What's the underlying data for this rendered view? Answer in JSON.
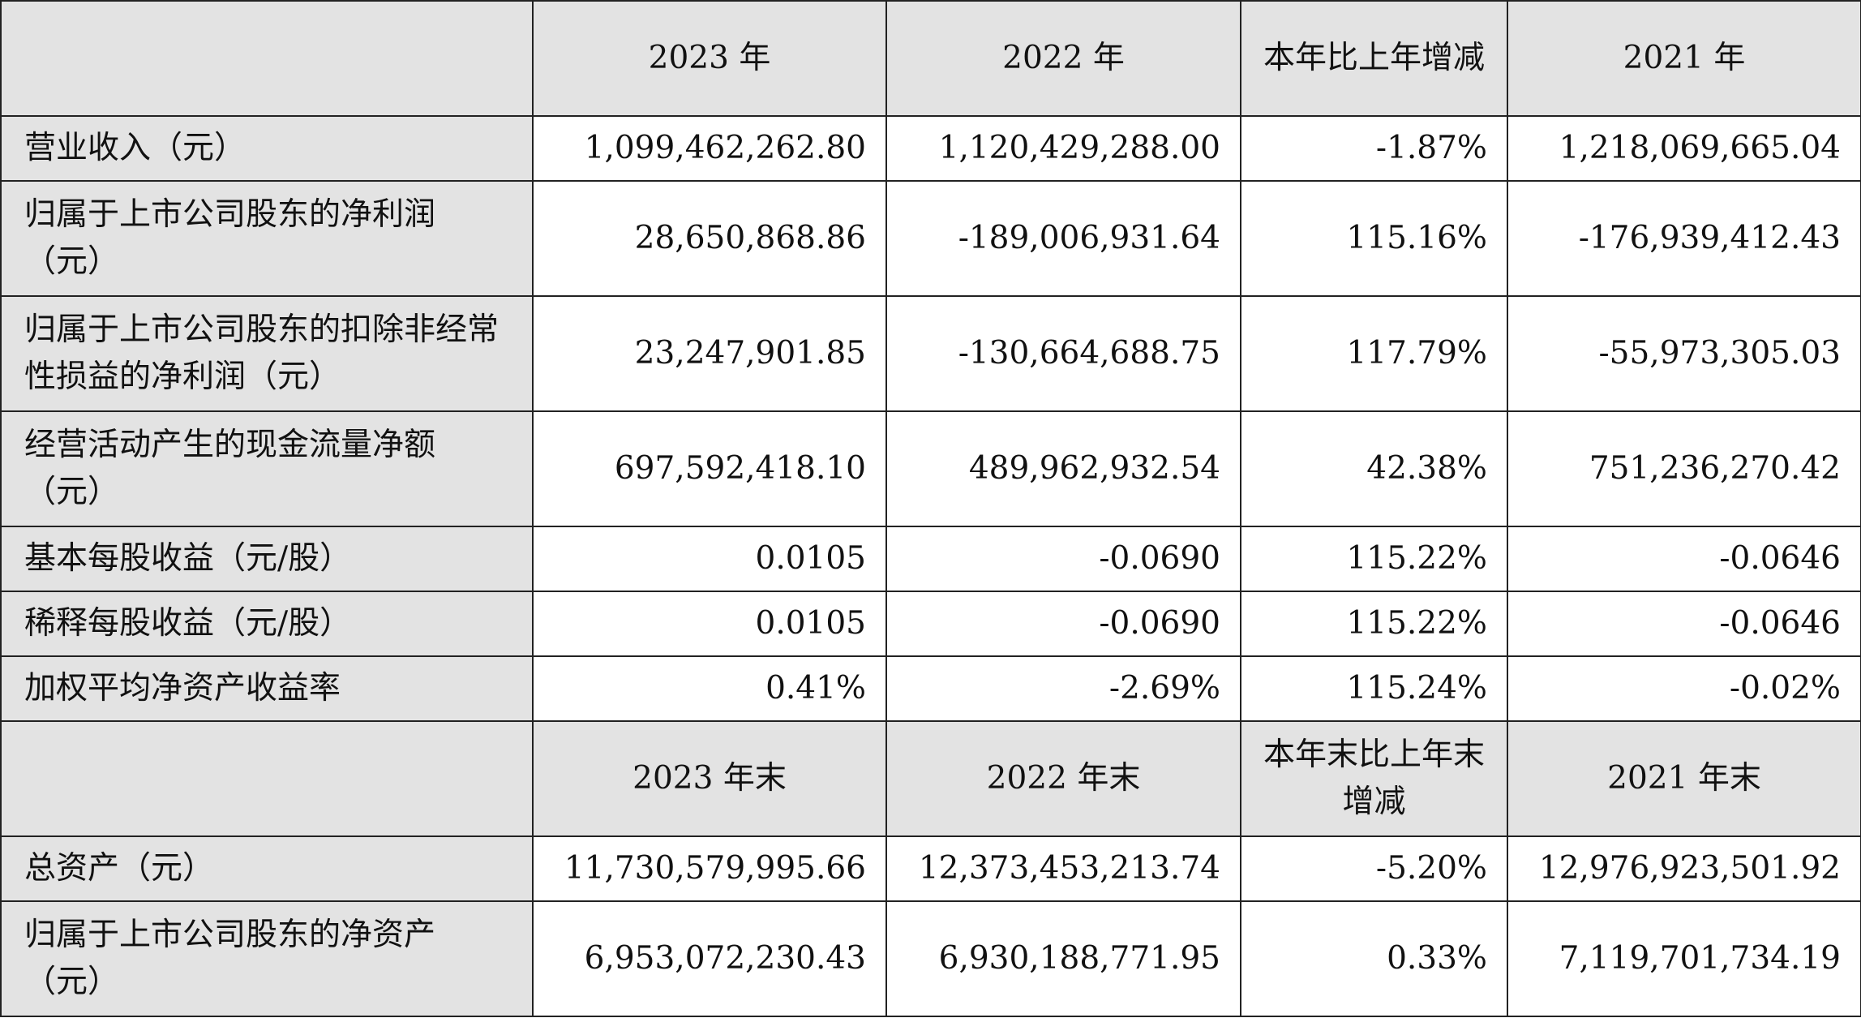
{
  "header1": {
    "col1": "2023 年",
    "col2": "2022 年",
    "col3": "本年比上年增减",
    "col4": "2021 年"
  },
  "rows1": [
    {
      "label": "营业收入（元）",
      "v2023": "1,099,462,262.80",
      "v2022": "1,120,429,288.00",
      "change": "-1.87%",
      "v2021": "1,218,069,665.04"
    },
    {
      "label": "归属于上市公司股东的净利润（元）",
      "v2023": "28,650,868.86",
      "v2022": "-189,006,931.64",
      "change": "115.16%",
      "v2021": "-176,939,412.43"
    },
    {
      "label": "归属于上市公司股东的扣除非经常性损益的净利润（元）",
      "v2023": "23,247,901.85",
      "v2022": "-130,664,688.75",
      "change": "117.79%",
      "v2021": "-55,973,305.03"
    },
    {
      "label": "经营活动产生的现金流量净额（元）",
      "v2023": "697,592,418.10",
      "v2022": "489,962,932.54",
      "change": "42.38%",
      "v2021": "751,236,270.42"
    },
    {
      "label": "基本每股收益（元/股）",
      "v2023": "0.0105",
      "v2022": "-0.0690",
      "change": "115.22%",
      "v2021": "-0.0646"
    },
    {
      "label": "稀释每股收益（元/股）",
      "v2023": "0.0105",
      "v2022": "-0.0690",
      "change": "115.22%",
      "v2021": "-0.0646"
    },
    {
      "label": "加权平均净资产收益率",
      "v2023": "0.41%",
      "v2022": "-2.69%",
      "change": "115.24%",
      "v2021": "-0.02%"
    }
  ],
  "header2": {
    "col1": "2023 年末",
    "col2": "2022 年末",
    "col3": "本年末比上年末增减",
    "col4": "2021 年末"
  },
  "rows2": [
    {
      "label": "总资产（元）",
      "v2023": "11,730,579,995.66",
      "v2022": "12,373,453,213.74",
      "change": "-5.20%",
      "v2021": "12,976,923,501.92"
    },
    {
      "label": "归属于上市公司股东的净资产（元）",
      "v2023": "6,953,072,230.43",
      "v2022": "6,930,188,771.95",
      "change": "0.33%",
      "v2021": "7,119,701,734.19"
    }
  ]
}
